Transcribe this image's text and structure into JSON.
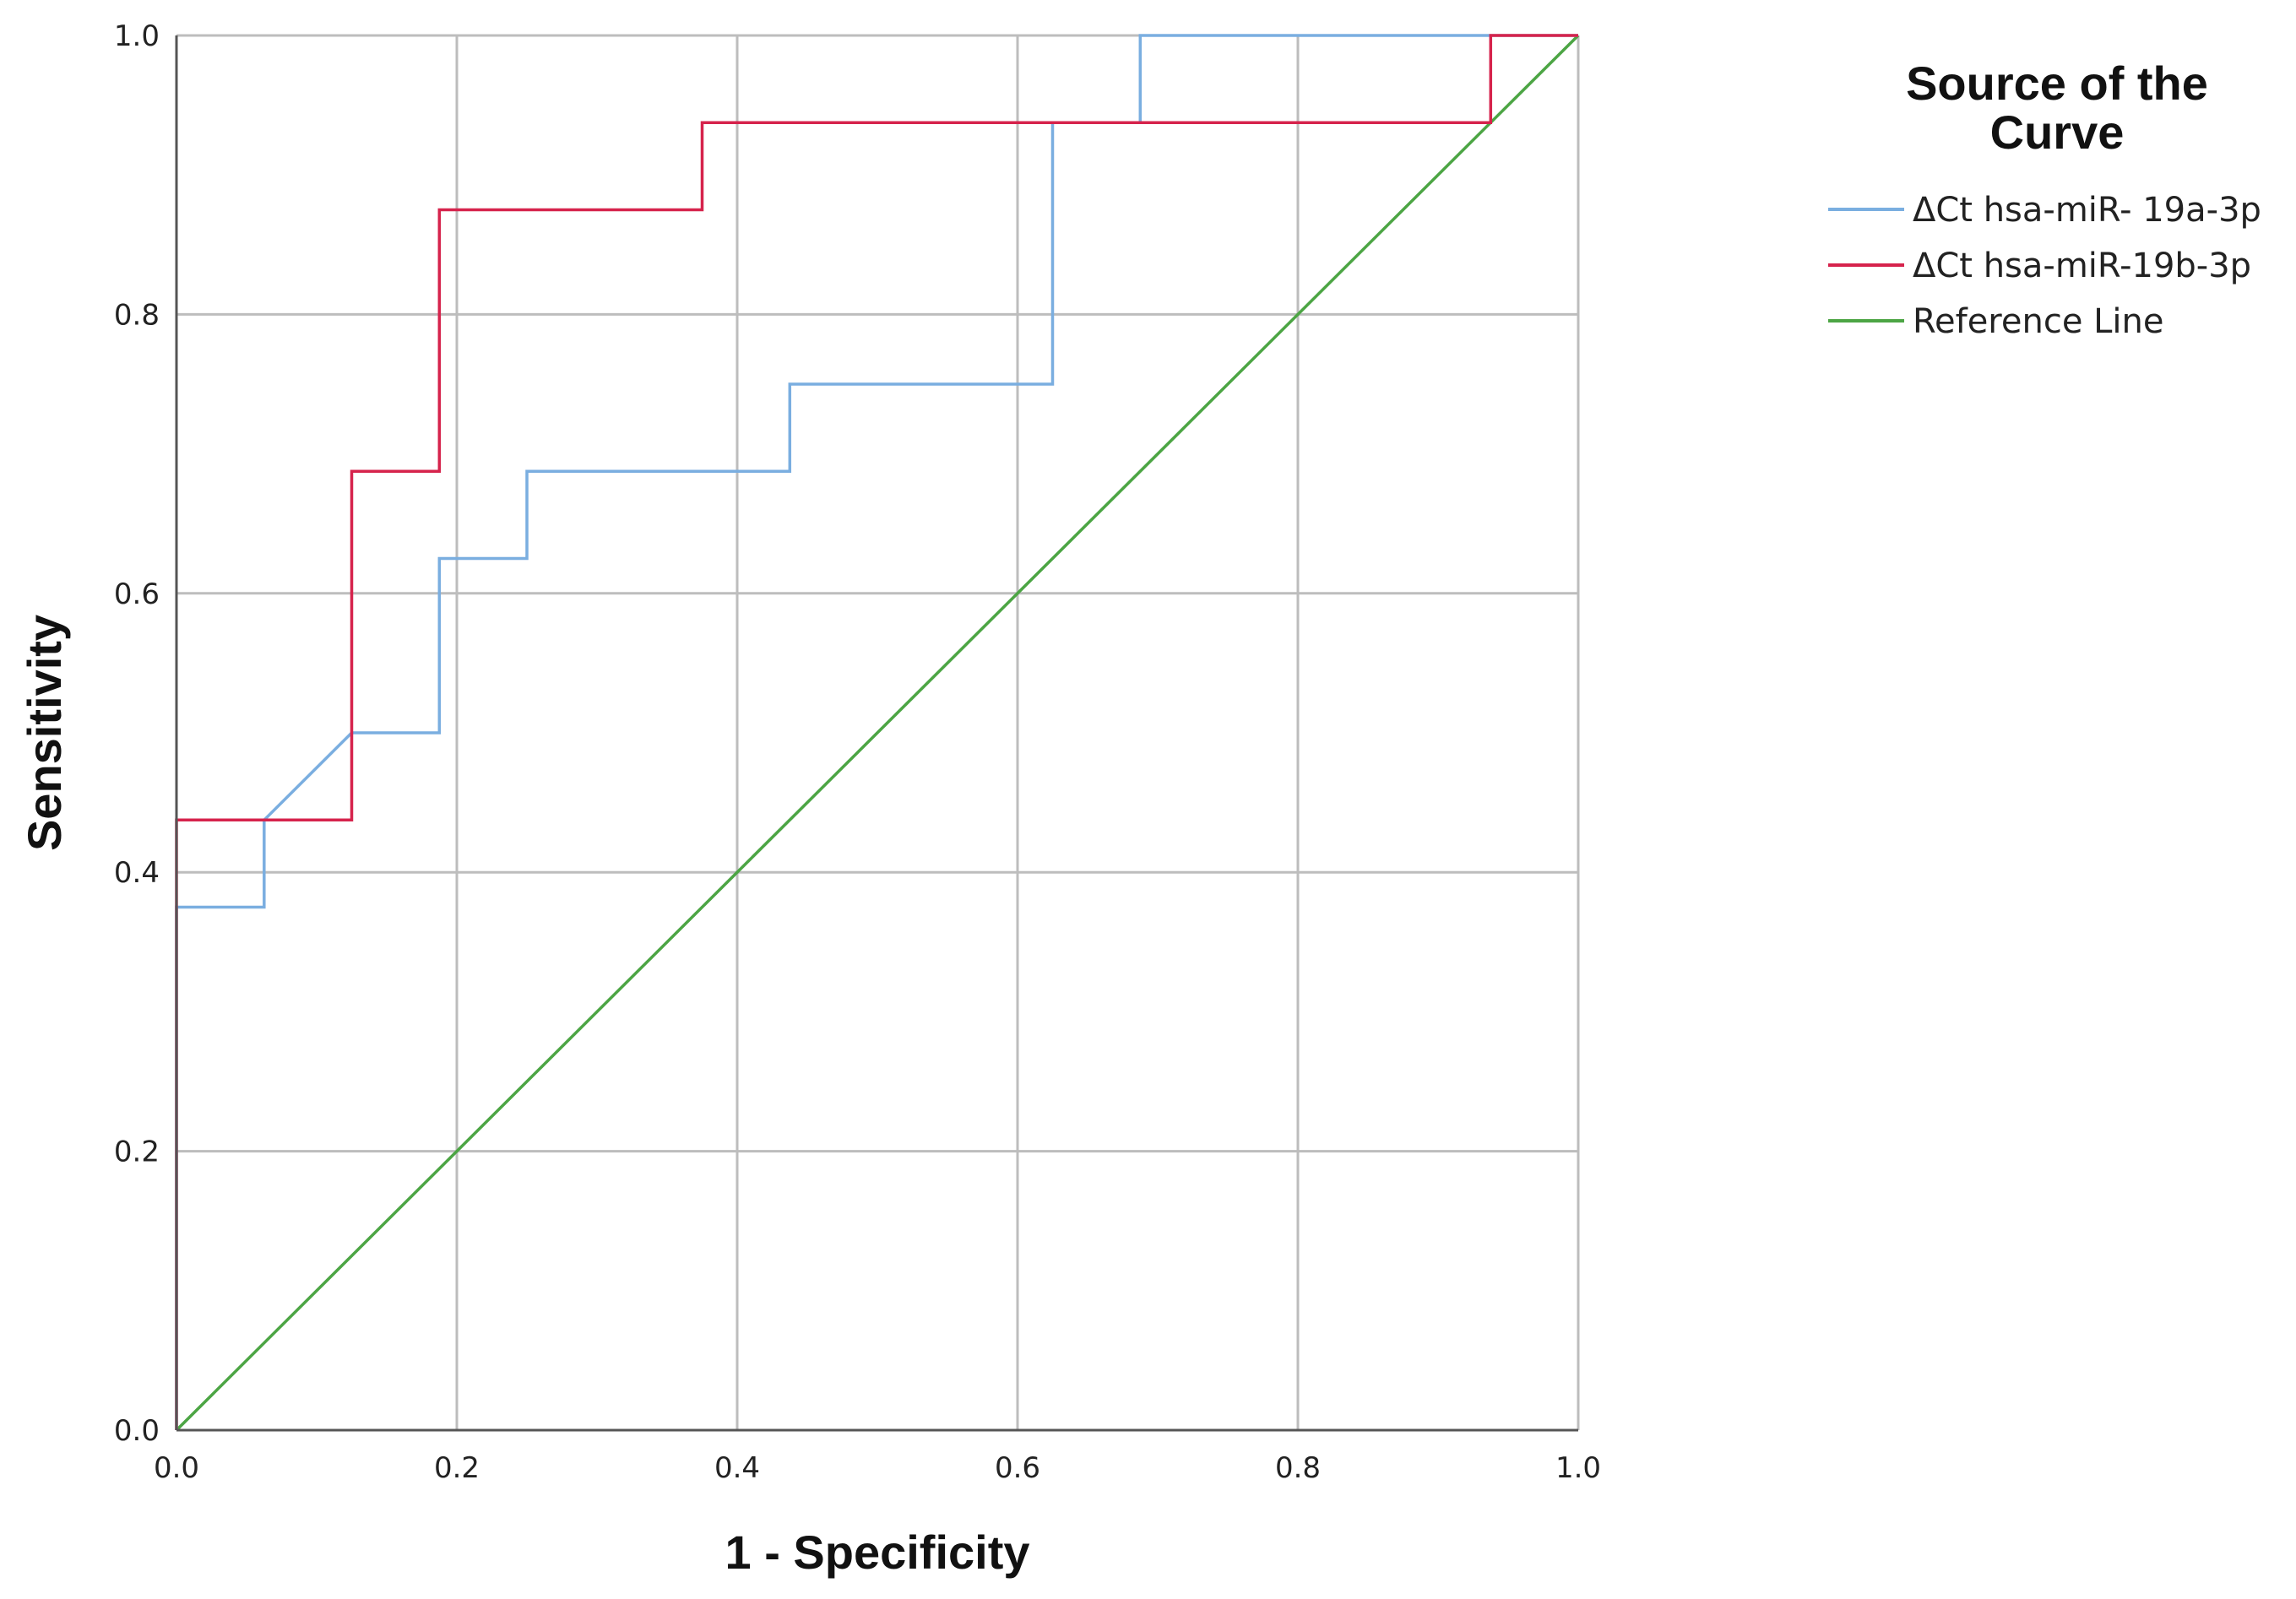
{
  "chart_data": {
    "type": "line",
    "xlabel": "1 - Specificity",
    "ylabel": "Sensitivity",
    "xlim": [
      0,
      1
    ],
    "ylim": [
      0,
      1
    ],
    "x_ticks": [
      "0.0",
      "0.2",
      "0.4",
      "0.6",
      "0.8",
      "1.0"
    ],
    "y_ticks": [
      "0.0",
      "0.2",
      "0.4",
      "0.6",
      "0.8",
      "1.0"
    ],
    "grid": true,
    "legend": {
      "title_lines": [
        "Source of the",
        "Curve"
      ],
      "placement": "right"
    },
    "series": [
      {
        "name": "ΔCt hsa-miR- 19a-3p",
        "color": "#7aaee0",
        "points": [
          [
            0.0,
            0.0
          ],
          [
            0.0,
            0.375
          ],
          [
            0.0625,
            0.375
          ],
          [
            0.0625,
            0.4375
          ],
          [
            0.125,
            0.5
          ],
          [
            0.1875,
            0.5
          ],
          [
            0.1875,
            0.625
          ],
          [
            0.25,
            0.625
          ],
          [
            0.25,
            0.6875
          ],
          [
            0.4375,
            0.6875
          ],
          [
            0.4375,
            0.75
          ],
          [
            0.625,
            0.75
          ],
          [
            0.625,
            0.9375
          ],
          [
            0.6875,
            0.9375
          ],
          [
            0.6875,
            1.0
          ],
          [
            1.0,
            1.0
          ]
        ]
      },
      {
        "name": "ΔCt hsa-miR-19b-3p",
        "color": "#d6234c",
        "points": [
          [
            0.0,
            0.0
          ],
          [
            0.0,
            0.4375
          ],
          [
            0.125,
            0.4375
          ],
          [
            0.125,
            0.6875
          ],
          [
            0.1875,
            0.6875
          ],
          [
            0.1875,
            0.875
          ],
          [
            0.375,
            0.875
          ],
          [
            0.375,
            0.9375
          ],
          [
            0.9375,
            0.9375
          ],
          [
            0.9375,
            1.0
          ],
          [
            1.0,
            1.0
          ]
        ]
      },
      {
        "name": "Reference Line",
        "color": "#4ca544",
        "points": [
          [
            0.0,
            0.0
          ],
          [
            1.0,
            1.0
          ]
        ]
      }
    ]
  }
}
